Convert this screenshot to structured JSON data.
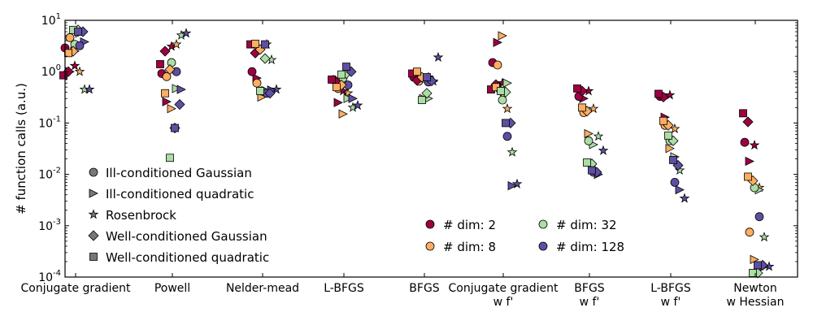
{
  "chart_data": {
    "type": "scatter",
    "title": "",
    "xlabel": "",
    "ylabel": "# function calls (a.u.)",
    "yscale": "log",
    "ylim": [
      0.0001,
      10
    ],
    "grid": false,
    "yticks": [
      {
        "value": 10,
        "base": "10",
        "exp": "1"
      },
      {
        "value": 1,
        "base": "10",
        "exp": "0"
      },
      {
        "value": 0.1,
        "base": "10",
        "exp": "-1"
      },
      {
        "value": 0.01,
        "base": "10",
        "exp": "-2"
      },
      {
        "value": 0.001,
        "base": "10",
        "exp": "-3"
      },
      {
        "value": 0.0001,
        "base": "10",
        "exp": "-4"
      }
    ],
    "categories": [
      {
        "line1": "Conjugate gradient",
        "line2": ""
      },
      {
        "line1": "Powell",
        "line2": ""
      },
      {
        "line1": "Nelder-mead",
        "line2": ""
      },
      {
        "line1": "L-BFGS",
        "line2": ""
      },
      {
        "line1": "BFGS",
        "line2": ""
      },
      {
        "line1": "Conjugate gradient",
        "line2": "w f'"
      },
      {
        "line1": "BFGS",
        "line2": "w f'"
      },
      {
        "line1": "L-BFGS",
        "line2": "w f'"
      },
      {
        "line1": "Newton",
        "line2": "w Hessian"
      }
    ],
    "problems": [
      {
        "key": "ig",
        "label": "Ill-conditioned Gaussian",
        "marker": "circle"
      },
      {
        "key": "iq",
        "label": "Ill-conditioned quadratic",
        "marker": "triangle-right"
      },
      {
        "key": "rb",
        "label": "Rosenbrock",
        "marker": "star"
      },
      {
        "key": "wg",
        "label": "Well-conditioned Gaussian",
        "marker": "diamond"
      },
      {
        "key": "wq",
        "label": "Well-conditioned quadratic",
        "marker": "square"
      }
    ],
    "dims": [
      {
        "label": "# dim: 2",
        "color": "#9e0142"
      },
      {
        "label": "# dim: 8",
        "color": "#fdae61"
      },
      {
        "label": "# dim: 32",
        "color": "#abdda4"
      },
      {
        "label": "# dim: 128",
        "color": "#5e4fa2"
      }
    ],
    "marker_legend_color": "#777777",
    "values": [
      {
        "ig": [
          2.9,
          4.6,
          3.4,
          3.2
        ],
        "iq": [
          1.0,
          2.5,
          5.6,
          3.8
        ],
        "rb": [
          1.3,
          1.0,
          0.45,
          0.45
        ],
        "wg": [
          1.0,
          2.5,
          6.5,
          6.0
        ],
        "wq": [
          0.85,
          2.3,
          6.5,
          6.0
        ]
      },
      {
        "ig": [
          0.92,
          0.8,
          1.5,
          1.0
        ],
        "iq": [
          0.26,
          0.19,
          0.47,
          0.45
        ],
        "rb": [
          3.1,
          3.4,
          5.1,
          5.6
        ],
        "wg": [
          2.5,
          1.1,
          0.08,
          0.23
        ],
        "wq": [
          1.4,
          0.38,
          0.021,
          0.08
        ]
      },
      {
        "ig": [
          1.0,
          0.6,
          0.42,
          0.38
        ],
        "iq": [
          0.75,
          0.32,
          0.42,
          0.44
        ],
        "rb": [
          0.42,
          3.4,
          1.7,
          0.45
        ],
        "wg": [
          2.3,
          2.7,
          1.8,
          0.38
        ],
        "wq": [
          3.4,
          3.5,
          0.42,
          3.4
        ]
      },
      {
        "ig": [
          0.7,
          0.47,
          0.75,
          0.55
        ],
        "iq": [
          0.25,
          0.15,
          0.3,
          0.3
        ],
        "rb": [
          0.42,
          0.38,
          0.2,
          0.22
        ],
        "wg": [
          0.62,
          0.55,
          0.92,
          1.0
        ],
        "wq": [
          0.7,
          0.5,
          0.88,
          1.25
        ]
      },
      {
        "ig": [
          0.78,
          0.65,
          0.75,
          0.63
        ],
        "iq": [
          0.72,
          0.3,
          0.3,
          0.65
        ],
        "rb": [
          0.7,
          0.78,
          0.65,
          1.9
        ],
        "wg": [
          0.68,
          0.78,
          0.38,
          0.66
        ],
        "wq": [
          0.92,
          1.0,
          0.28,
          0.78
        ]
      },
      {
        "ig": [
          1.5,
          1.35,
          0.28,
          0.055
        ],
        "iq": [
          3.7,
          5.0,
          0.6,
          0.006
        ],
        "rb": [
          0.6,
          0.19,
          0.027,
          0.0065
        ],
        "wg": [
          0.56,
          0.42,
          0.4,
          0.1
        ],
        "wq": [
          0.45,
          0.5,
          0.42,
          0.1
        ]
      },
      {
        "ig": [
          0.33,
          0.16,
          0.045,
          0.011
        ],
        "iq": [
          0.3,
          0.062,
          0.038,
          0.01
        ],
        "rb": [
          0.42,
          0.19,
          0.055,
          0.029
        ],
        "wg": [
          0.42,
          0.17,
          0.016,
          0.011
        ],
        "wq": [
          0.47,
          0.2,
          0.017,
          0.012
        ]
      },
      {
        "ig": [
          0.33,
          0.09,
          0.045,
          0.007
        ],
        "iq": [
          0.13,
          0.032,
          0.022,
          0.005
        ],
        "rb": [
          0.35,
          0.077,
          0.012,
          0.0034
        ],
        "wg": [
          0.32,
          0.09,
          0.045,
          0.015
        ],
        "wq": [
          0.37,
          0.11,
          0.057,
          0.019
        ]
      },
      {
        "ig": [
          0.042,
          0.00075,
          0.0055,
          0.0015
        ],
        "iq": [
          0.018,
          0.00022,
          0.005,
          0.00016
        ],
        "rb": [
          0.037,
          0.0055,
          0.0006,
          0.00016
        ],
        "wg": [
          0.105,
          0.0075,
          0.00012,
          0.00017
        ],
        "wq": [
          0.155,
          0.009,
          0.00012,
          0.00017
        ]
      }
    ]
  }
}
